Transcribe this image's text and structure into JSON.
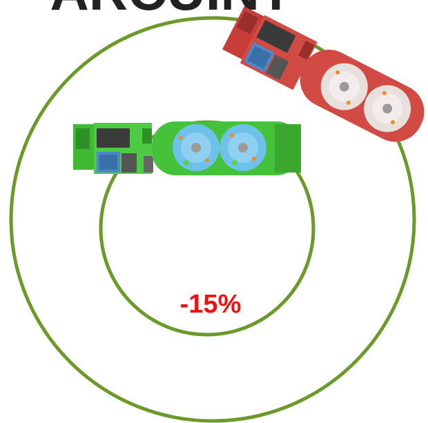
{
  "header": {
    "title_fragment": "ARCUINT"
  },
  "diagram": {
    "reduction_label": "-15%",
    "colors": {
      "ring": "#6b9a2a",
      "reduction_text": "#ee1111",
      "truck_inner": "#46c23a",
      "truck_outer": "#d24a44",
      "title": "#222222"
    }
  }
}
